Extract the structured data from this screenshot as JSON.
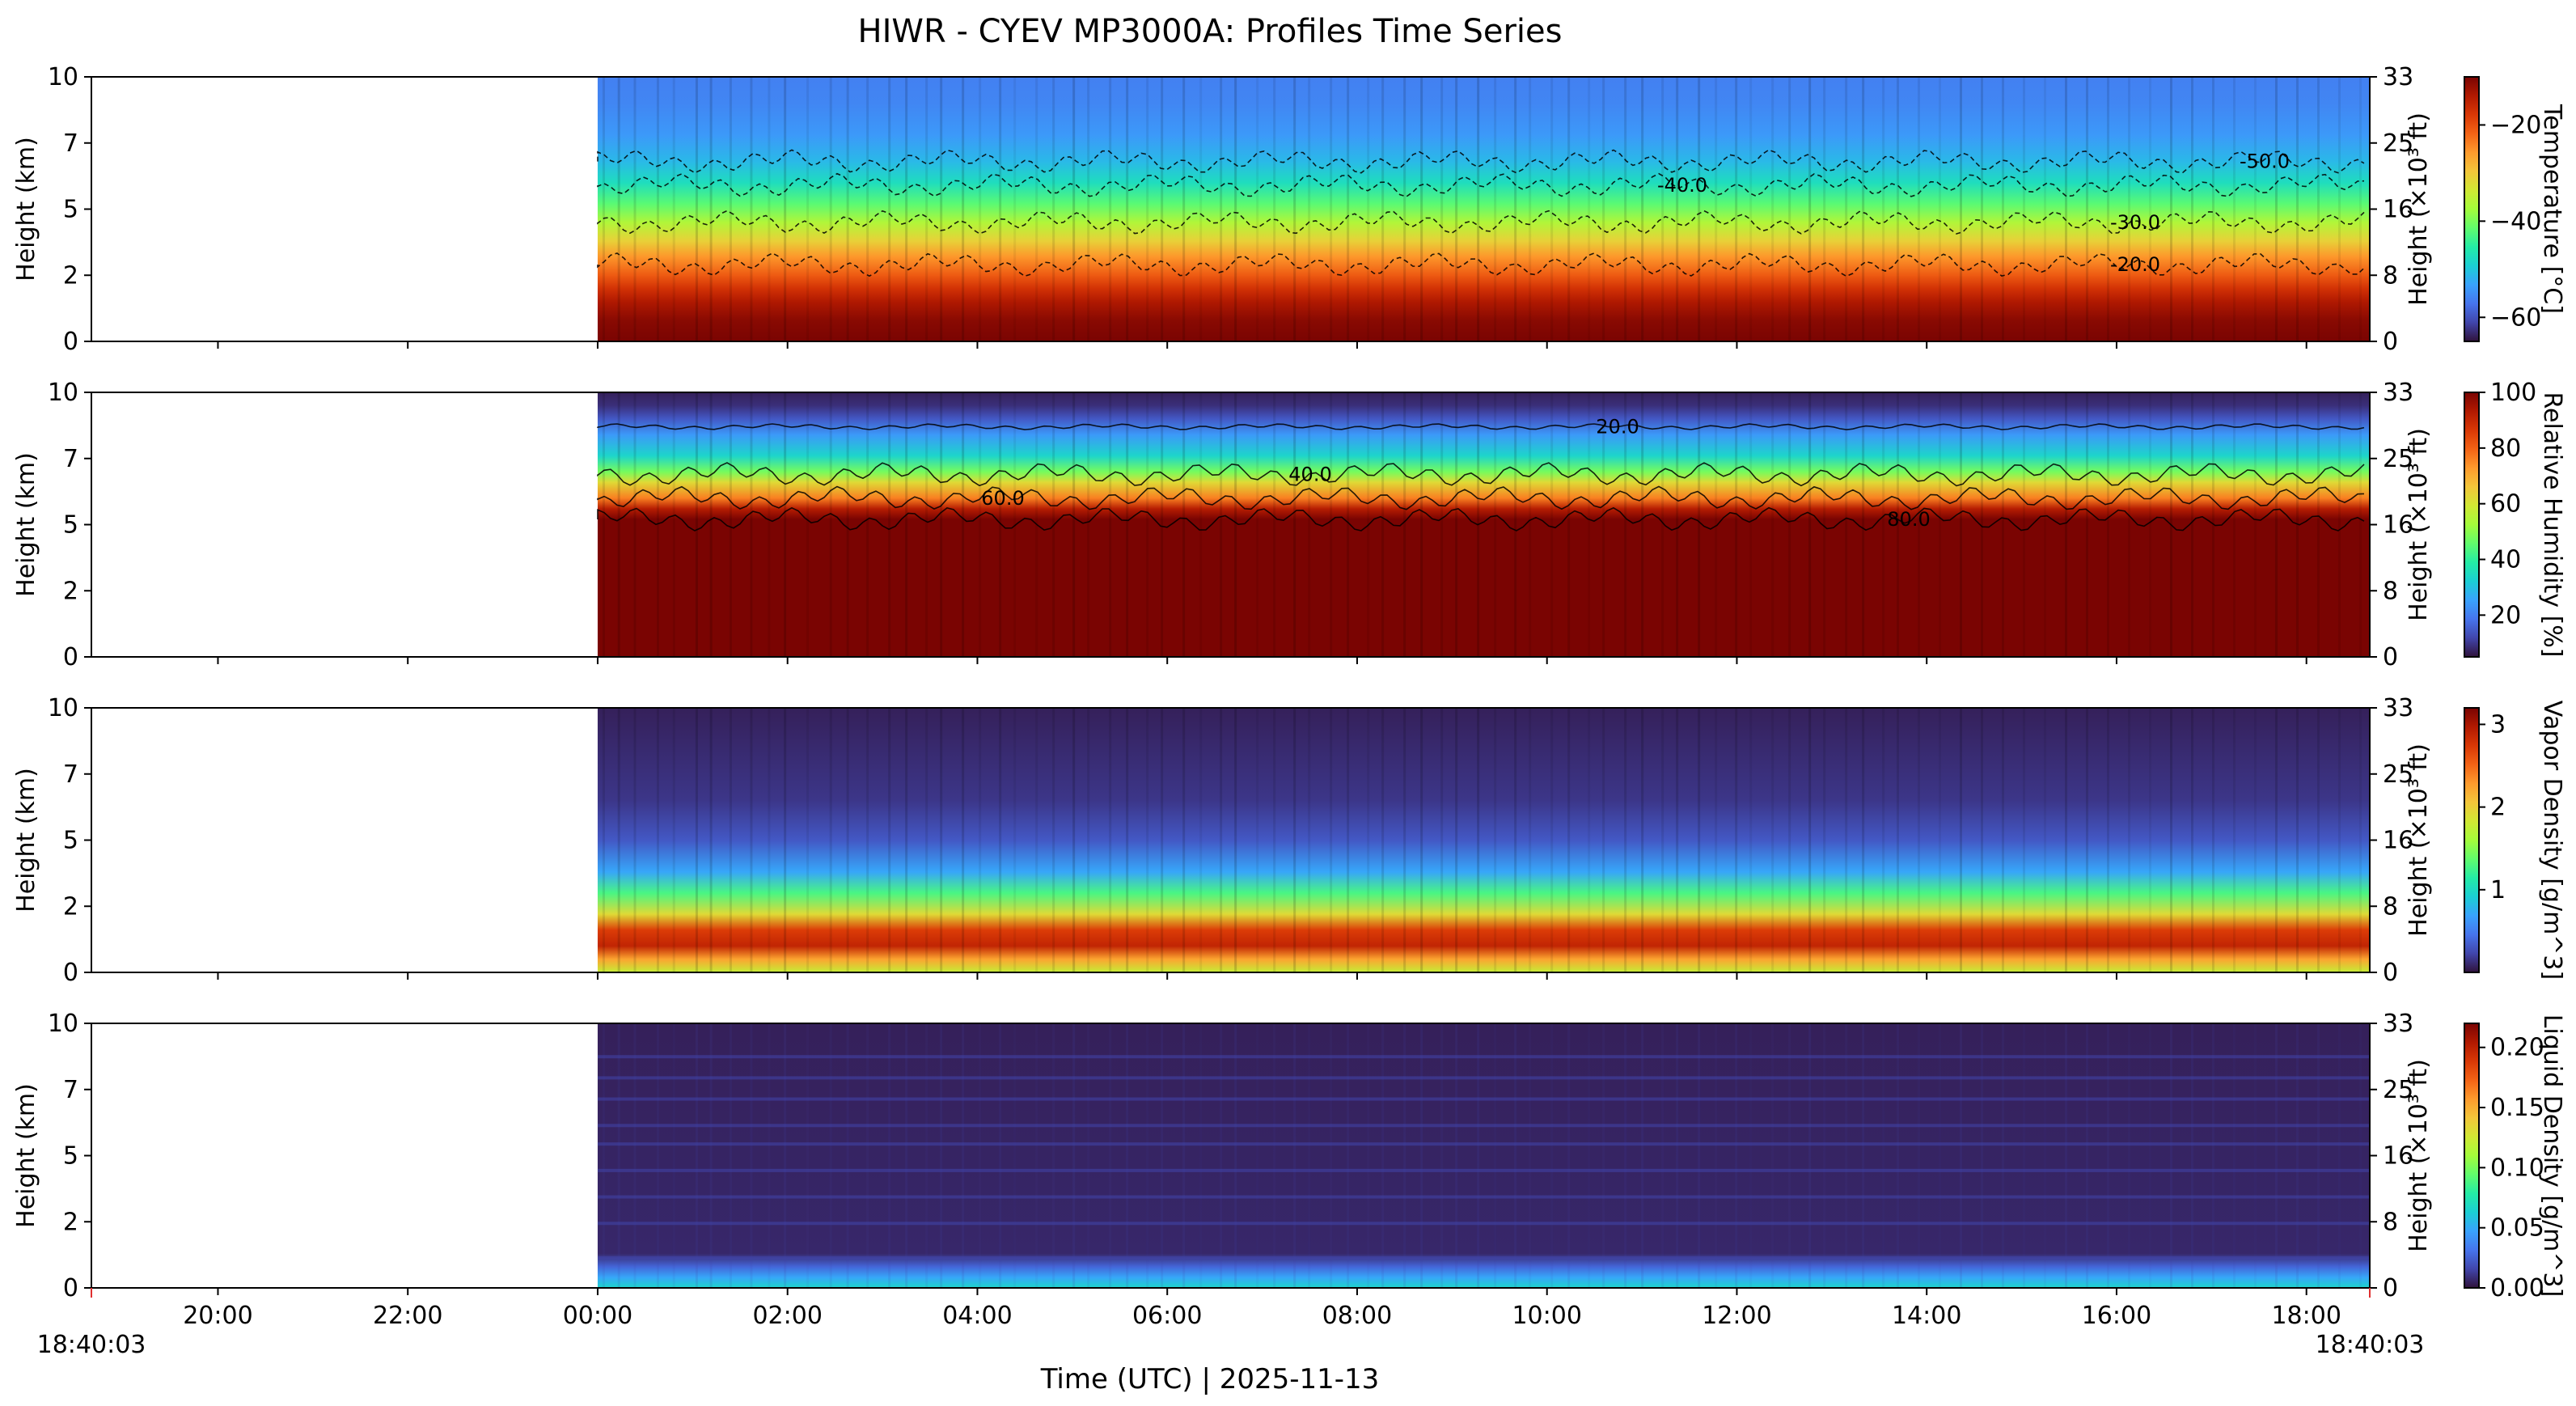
{
  "title": "HIWR - CYEV MP3000A: Profiles Time Series",
  "xlabel": "Time (UTC)  |  2025-11-13",
  "start_label": "18:40:03",
  "end_label": "18:40:03",
  "chart_data": [
    {
      "type": "heatmap",
      "variable": "Temperature",
      "colorbar_label": "Temperature [°C]",
      "colorbar_range": [
        -65,
        -10
      ],
      "colorbar_ticks": [
        "−20",
        "−40",
        "−60"
      ],
      "colormap": "turbo",
      "ylabel_left": "Height (km)",
      "ylabel_right": "Height (×10³ ft)",
      "ylim_km": [
        0,
        10
      ],
      "yticks_left": [
        "0",
        "2",
        "5",
        "7",
        "10"
      ],
      "yticks_right": [
        "0",
        "8",
        "16",
        "25",
        "33"
      ],
      "data_start_time": "00:00",
      "contours": [
        {
          "label": "-20.0",
          "height_km": 2.9
        },
        {
          "label": "-30.0",
          "height_km": 4.5
        },
        {
          "label": "-40.0",
          "height_km": 5.9
        },
        {
          "label": "-50.0",
          "height_km": 6.8
        }
      ]
    },
    {
      "type": "heatmap",
      "variable": "Relative Humidity",
      "colorbar_label": "Relative Humidity [%]",
      "colorbar_range": [
        5,
        100
      ],
      "colorbar_ticks": [
        "100",
        "80",
        "60",
        "40",
        "20"
      ],
      "colormap": "turbo",
      "ylabel_left": "Height (km)",
      "ylabel_right": "Height (×10³ ft)",
      "ylim_km": [
        0,
        10
      ],
      "yticks_left": [
        "0",
        "2",
        "5",
        "7",
        "10"
      ],
      "yticks_right": [
        "0",
        "8",
        "16",
        "25",
        "33"
      ],
      "data_start_time": "00:00",
      "contours": [
        {
          "label": "20.0",
          "height_km": 8.7
        },
        {
          "label": "40.0",
          "height_km": 6.9
        },
        {
          "label": "60.0",
          "height_km": 6.0
        },
        {
          "label": "80.0",
          "height_km": 5.2
        }
      ]
    },
    {
      "type": "heatmap",
      "variable": "Vapor Density",
      "colorbar_label": "Vapor Density [g/m^3]",
      "colorbar_range": [
        0,
        3.2
      ],
      "colorbar_ticks": [
        "3",
        "2",
        "1"
      ],
      "colormap": "turbo",
      "ylabel_left": "Height (km)",
      "ylabel_right": "Height (×10³ ft)",
      "ylim_km": [
        0,
        10
      ],
      "yticks_left": [
        "0",
        "2",
        "5",
        "7",
        "10"
      ],
      "yticks_right": [
        "0",
        "8",
        "16",
        "25",
        "33"
      ],
      "data_start_time": "00:00",
      "contours": []
    },
    {
      "type": "heatmap",
      "variable": "Liquid Density",
      "colorbar_label": "Liquid Density [g/m^3]",
      "colorbar_range": [
        0,
        0.22
      ],
      "colorbar_ticks": [
        "0.20",
        "0.15",
        "0.10",
        "0.05",
        "0.00"
      ],
      "colormap": "turbo",
      "ylabel_left": "Height (km)",
      "ylabel_right": "Height (×10³ ft)",
      "ylim_km": [
        0,
        10
      ],
      "yticks_left": [
        "0",
        "2",
        "5",
        "7",
        "10"
      ],
      "yticks_right": [
        "0",
        "8",
        "16",
        "25",
        "33"
      ],
      "data_start_time": "00:00",
      "contours": []
    }
  ],
  "x_axis": {
    "range_hours": [
      -5.333,
      18.667
    ],
    "tick_labels": [
      "20:00",
      "22:00",
      "00:00",
      "02:00",
      "04:00",
      "06:00",
      "08:00",
      "10:00",
      "12:00",
      "14:00",
      "16:00",
      "18:00"
    ],
    "tick_hours": [
      -4,
      -2,
      0,
      2,
      4,
      6,
      8,
      10,
      12,
      14,
      16,
      18
    ]
  }
}
